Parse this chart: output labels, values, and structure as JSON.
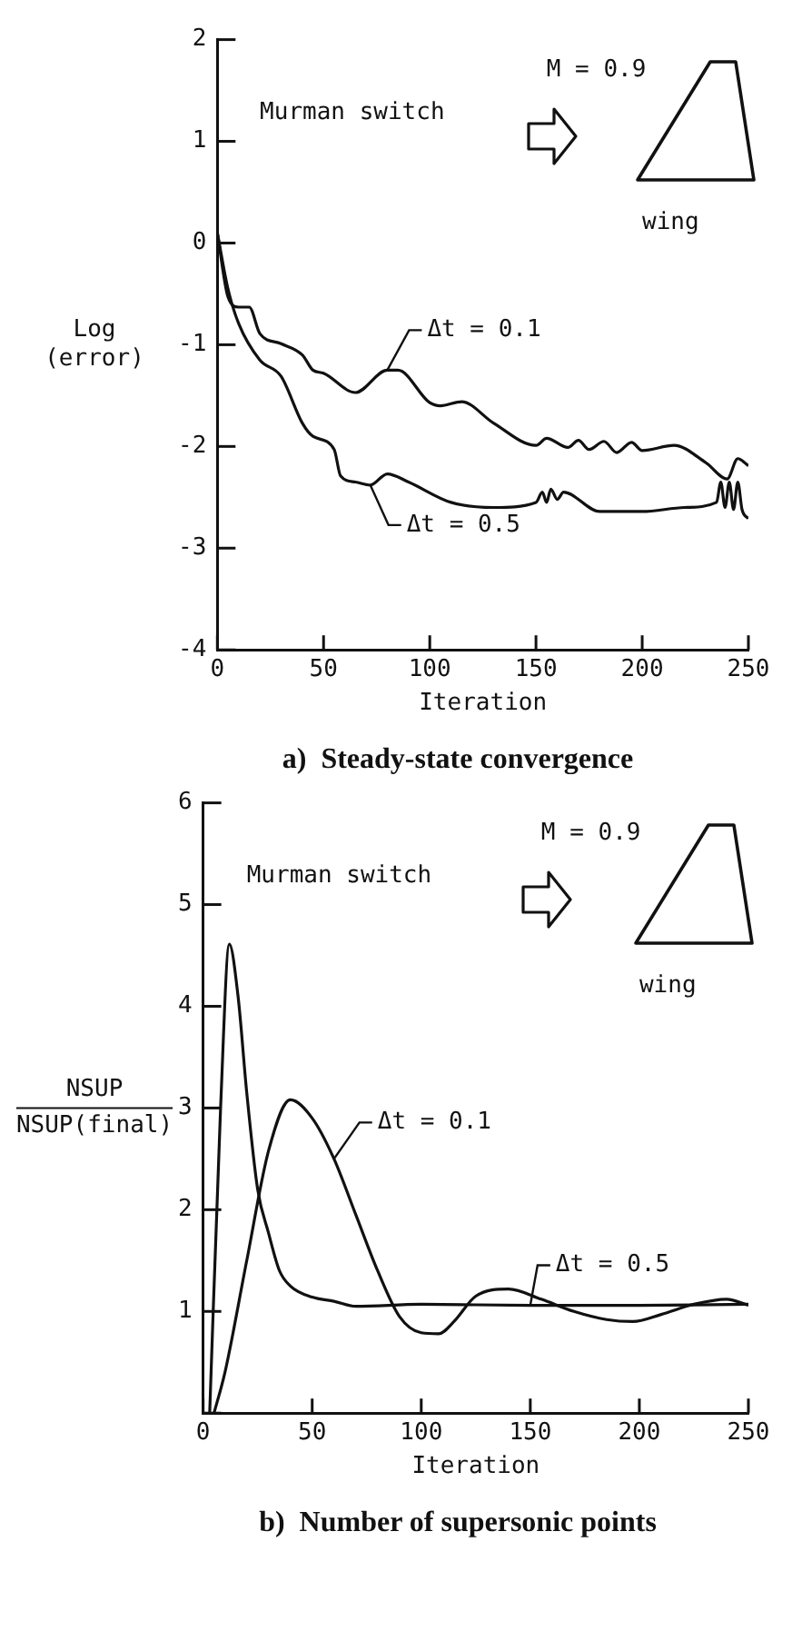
{
  "chart_data": [
    {
      "type": "line",
      "title": "a)  Steady-state convergence",
      "xlabel": "Iteration",
      "ylabel": "Log\n(error)",
      "annotations": [
        "Murman switch",
        "M = 0.9",
        "wing"
      ],
      "xlim": [
        0,
        250
      ],
      "xticks": [
        0,
        50,
        100,
        150,
        200,
        250
      ],
      "ylim": [
        -4,
        2
      ],
      "yticks": [
        -4,
        -3,
        -2,
        -1,
        0,
        1,
        2
      ],
      "grid": false,
      "legend": false,
      "marker": "none",
      "line_style": "solid",
      "series": [
        {
          "name": "Δt = 0.1",
          "color": "#111111",
          "x": [
            0,
            5,
            10,
            15,
            20,
            30,
            40,
            45,
            50,
            65,
            80,
            85,
            100,
            105,
            115,
            130,
            150,
            155,
            165,
            170,
            175,
            182,
            188,
            195,
            200,
            215,
            230,
            240,
            245,
            250
          ],
          "values": [
            0.1,
            -0.53,
            -0.63,
            -0.63,
            -0.89,
            -0.99,
            -1.1,
            -1.25,
            -1.28,
            -1.47,
            -1.25,
            -1.25,
            -1.57,
            -1.6,
            -1.56,
            -1.77,
            -1.99,
            -1.92,
            -2.01,
            -1.94,
            -2.03,
            -1.95,
            -2.06,
            -1.96,
            -2.04,
            -1.99,
            -2.16,
            -2.32,
            -2.12,
            -2.19
          ]
        },
        {
          "name": "Δt = 0.5",
          "color": "#111111",
          "x": [
            0,
            5,
            10,
            20,
            30,
            40,
            45,
            55,
            58,
            65,
            72,
            80,
            90,
            110,
            130,
            150,
            153,
            155,
            157,
            160,
            163,
            180,
            200,
            220,
            235,
            237,
            239,
            241,
            243,
            245,
            247,
            250
          ],
          "values": [
            0.1,
            -0.45,
            -0.79,
            -1.15,
            -1.31,
            -1.77,
            -1.9,
            -2.03,
            -2.29,
            -2.35,
            -2.38,
            -2.27,
            -2.35,
            -2.55,
            -2.6,
            -2.55,
            -2.45,
            -2.55,
            -2.42,
            -2.52,
            -2.45,
            -2.64,
            -2.64,
            -2.6,
            -2.55,
            -2.35,
            -2.6,
            -2.35,
            -2.62,
            -2.35,
            -2.62,
            -2.71
          ]
        }
      ]
    },
    {
      "type": "line",
      "title": "b)  Number of supersonic points",
      "xlabel": "Iteration",
      "ylabel": "NSUP\nNSUP(final)",
      "annotations": [
        "Murman switch",
        "M = 0.9",
        "wing"
      ],
      "xlim": [
        0,
        250
      ],
      "xticks": [
        0,
        50,
        100,
        150,
        200,
        250
      ],
      "ylim": [
        0,
        6
      ],
      "yticks": [
        {
          "value": 0,
          "label": null
        },
        1,
        2,
        3,
        4,
        5,
        6
      ],
      "grid": false,
      "legend": false,
      "marker": "none",
      "line_style": "solid",
      "series": [
        {
          "name": "Δt = 0.1",
          "color": "#111111",
          "x": [
            5,
            10,
            20,
            30,
            40,
            50,
            60,
            70,
            80,
            90,
            100,
            108,
            115,
            125,
            140,
            155,
            170,
            185,
            197,
            210,
            225,
            240,
            250
          ],
          "values": [
            0,
            0.4,
            1.5,
            2.58,
            3.08,
            2.9,
            2.5,
            1.95,
            1.4,
            0.95,
            0.79,
            0.78,
            0.9,
            1.15,
            1.22,
            1.12,
            1.0,
            0.92,
            0.9,
            0.97,
            1.07,
            1.12,
            1.06
          ]
        },
        {
          "name": "Δt = 0.5",
          "color": "#111111",
          "x": [
            3,
            8,
            12,
            16,
            20,
            25,
            30,
            35,
            40,
            50,
            60,
            70,
            100,
            150,
            200,
            250
          ],
          "values": [
            0,
            3.0,
            4.61,
            4.1,
            3.15,
            2.2,
            1.77,
            1.4,
            1.25,
            1.14,
            1.1,
            1.05,
            1.07,
            1.06,
            1.06,
            1.07
          ]
        }
      ]
    }
  ]
}
